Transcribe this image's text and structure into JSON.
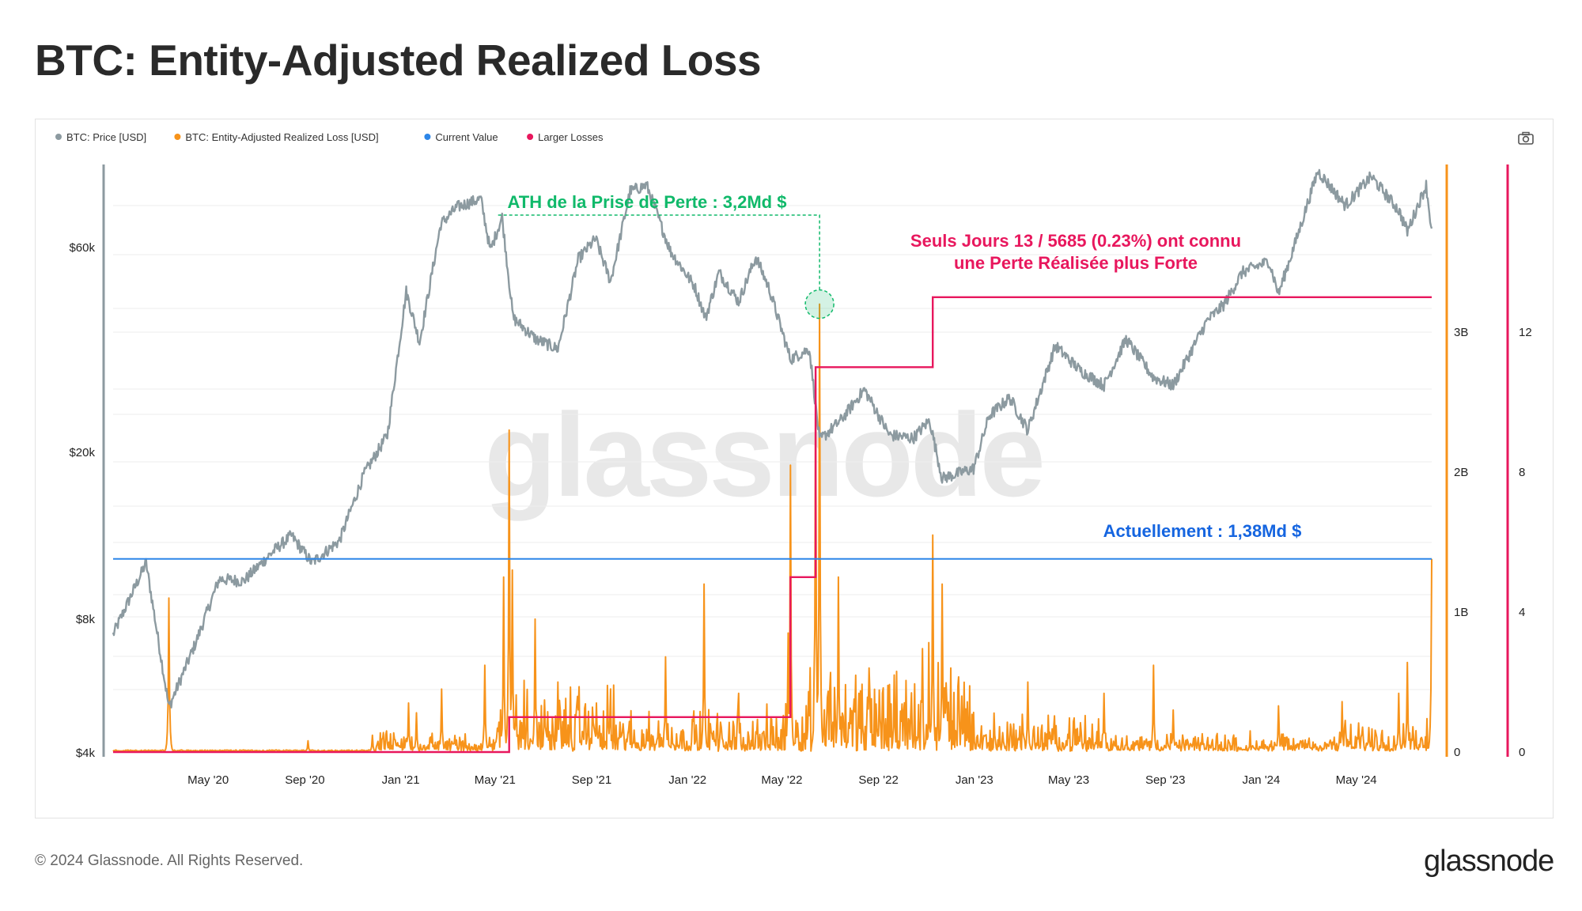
{
  "title": "BTC: Entity-Adjusted Realized Loss",
  "footer": {
    "copyright": "© 2024 Glassnode. All Rights Reserved.",
    "logo": "glassnode"
  },
  "watermark": "glassnode",
  "toolbar": {
    "camera_icon": "camera-icon"
  },
  "colors": {
    "price": "#8c9aa0",
    "loss": "#f7931a",
    "current_value": "#2d86e8",
    "larger_losses": "#e8175d",
    "ath_marker": "#10b96a"
  },
  "legend": [
    {
      "label": "BTC: Price [USD]",
      "color": "#8c9aa0"
    },
    {
      "label": "BTC: Entity-Adjusted Realized Loss [USD]",
      "color": "#f7931a"
    },
    {
      "label": "Current Value",
      "color": "#2d86e8"
    },
    {
      "label": "Larger Losses",
      "color": "#e8175d"
    }
  ],
  "annotations": {
    "ath": "ATH de la Prise de Perte : 3,2Md $",
    "larger_line1": "Seuls Jours 13 / 5685 (0.23%) ont connu",
    "larger_line2": "une Perte Réalisée plus Forte",
    "current": "Actuellement : 1,38Md $"
  },
  "chart_data": {
    "type": "line",
    "x_range": [
      "2020-01-01",
      "2024-08-05"
    ],
    "x_tick_labels": [
      "May '20",
      "Sep '20",
      "Jan '21",
      "May '21",
      "Sep '21",
      "Jan '22",
      "May '22",
      "Sep '22",
      "Jan '23",
      "May '23",
      "Sep '23",
      "Jan '24",
      "May '24"
    ],
    "y_axes": [
      {
        "name": "price",
        "scale": "log",
        "range": [
          4000,
          80000
        ],
        "ticks": [
          4000,
          8000,
          20000,
          60000
        ],
        "tick_labels": [
          "$4k",
          "$8k",
          "$20k",
          "$60k"
        ]
      },
      {
        "name": "loss",
        "scale": "linear",
        "range": [
          0,
          4000000000
        ],
        "ticks": [
          0,
          1000000000,
          2000000000,
          3000000000
        ],
        "tick_labels": [
          "0",
          "1B",
          "2B",
          "3B"
        ]
      },
      {
        "name": "larger_losses_count",
        "scale": "linear",
        "range": [
          0,
          16
        ],
        "ticks": [
          0,
          4,
          8,
          12
        ],
        "tick_labels": [
          "0",
          "4",
          "8",
          "12"
        ]
      }
    ],
    "series": [
      {
        "name": "BTC: Price [USD]",
        "axis": "price",
        "points": [
          [
            "2020-01-01",
            7200
          ],
          [
            "2020-02-12",
            10300
          ],
          [
            "2020-03-12",
            5000
          ],
          [
            "2020-04-15",
            6900
          ],
          [
            "2020-05-15",
            9500
          ],
          [
            "2020-06-15",
            9400
          ],
          [
            "2020-07-25",
            11000
          ],
          [
            "2020-08-15",
            11800
          ],
          [
            "2020-09-10",
            10300
          ],
          [
            "2020-10-15",
            11500
          ],
          [
            "2020-11-15",
            16000
          ],
          [
            "2020-12-15",
            19500
          ],
          [
            "2021-01-08",
            40000
          ],
          [
            "2021-01-25",
            31000
          ],
          [
            "2021-02-21",
            56000
          ],
          [
            "2021-03-14",
            61000
          ],
          [
            "2021-04-13",
            63500
          ],
          [
            "2021-04-25",
            49000
          ],
          [
            "2021-05-10",
            58000
          ],
          [
            "2021-05-24",
            35000
          ],
          [
            "2021-06-22",
            31500
          ],
          [
            "2021-07-20",
            30000
          ],
          [
            "2021-08-15",
            47000
          ],
          [
            "2021-09-06",
            52000
          ],
          [
            "2021-09-25",
            42000
          ],
          [
            "2021-10-20",
            66000
          ],
          [
            "2021-11-10",
            68000
          ],
          [
            "2021-12-10",
            49000
          ],
          [
            "2022-01-10",
            41000
          ],
          [
            "2022-01-24",
            35000
          ],
          [
            "2022-02-10",
            44000
          ],
          [
            "2022-03-07",
            38000
          ],
          [
            "2022-03-29",
            47500
          ],
          [
            "2022-04-15",
            40500
          ],
          [
            "2022-05-12",
            28500
          ],
          [
            "2022-06-05",
            30000
          ],
          [
            "2022-06-18",
            19000
          ],
          [
            "2022-07-15",
            21000
          ],
          [
            "2022-08-14",
            24500
          ],
          [
            "2022-09-15",
            19500
          ],
          [
            "2022-10-15",
            19200
          ],
          [
            "2022-11-05",
            21000
          ],
          [
            "2022-11-21",
            15700
          ],
          [
            "2022-12-31",
            16500
          ],
          [
            "2023-01-20",
            21500
          ],
          [
            "2023-02-15",
            23500
          ],
          [
            "2023-03-10",
            20000
          ],
          [
            "2023-04-14",
            30500
          ],
          [
            "2023-05-15",
            27000
          ],
          [
            "2023-06-15",
            25000
          ],
          [
            "2023-07-13",
            31500
          ],
          [
            "2023-08-17",
            26000
          ],
          [
            "2023-09-11",
            25000
          ],
          [
            "2023-10-24",
            34500
          ],
          [
            "2023-11-15",
            37500
          ],
          [
            "2023-12-08",
            44000
          ],
          [
            "2024-01-11",
            46500
          ],
          [
            "2024-01-23",
            39500
          ],
          [
            "2024-02-15",
            52000
          ],
          [
            "2024-03-13",
            73000
          ],
          [
            "2024-04-17",
            61500
          ],
          [
            "2024-05-20",
            71000
          ],
          [
            "2024-06-24",
            60000
          ],
          [
            "2024-07-05",
            54000
          ],
          [
            "2024-07-29",
            68000
          ],
          [
            "2024-08-05",
            54000
          ]
        ]
      },
      {
        "name": "BTC: Entity-Adjusted Realized Loss [USD]",
        "axis": "loss",
        "baseline": 10000000,
        "spikes": [
          [
            "2020-03-12",
            1100000000
          ],
          [
            "2020-09-05",
            80000000
          ],
          [
            "2020-11-26",
            120000000
          ],
          [
            "2021-01-11",
            350000000
          ],
          [
            "2021-01-21",
            280000000
          ],
          [
            "2021-02-22",
            450000000
          ],
          [
            "2021-04-18",
            620000000
          ],
          [
            "2021-05-12",
            1250000000
          ],
          [
            "2021-05-19",
            2300000000
          ],
          [
            "2021-05-23",
            1300000000
          ],
          [
            "2021-06-21",
            950000000
          ],
          [
            "2021-07-20",
            500000000
          ],
          [
            "2021-09-07",
            350000000
          ],
          [
            "2021-12-04",
            680000000
          ],
          [
            "2022-01-22",
            1200000000
          ],
          [
            "2022-03-07",
            420000000
          ],
          [
            "2022-05-09",
            850000000
          ],
          [
            "2022-05-12",
            2050000000
          ],
          [
            "2022-06-13",
            2700000000
          ],
          [
            "2022-06-18",
            3200000000
          ],
          [
            "2022-07-12",
            1250000000
          ],
          [
            "2022-08-20",
            600000000
          ],
          [
            "2022-09-21",
            550000000
          ],
          [
            "2022-11-09",
            1550000000
          ],
          [
            "2022-11-21",
            1200000000
          ],
          [
            "2022-12-16",
            400000000
          ],
          [
            "2023-03-10",
            500000000
          ],
          [
            "2023-06-15",
            420000000
          ],
          [
            "2023-08-17",
            620000000
          ],
          [
            "2023-09-11",
            300000000
          ],
          [
            "2024-01-23",
            330000000
          ],
          [
            "2024-04-13",
            360000000
          ],
          [
            "2024-06-24",
            420000000
          ],
          [
            "2024-07-05",
            640000000
          ],
          [
            "2024-08-05",
            1380000000
          ]
        ]
      },
      {
        "name": "Current Value",
        "axis": "loss",
        "value": 1380000000
      },
      {
        "name": "Larger Losses",
        "axis": "larger_losses_count",
        "steps": [
          [
            "2020-01-01",
            0
          ],
          [
            "2021-05-19",
            1
          ],
          [
            "2022-05-12",
            5
          ],
          [
            "2022-06-13",
            11
          ],
          [
            "2022-11-09",
            13
          ],
          [
            "2024-08-05",
            13
          ]
        ]
      }
    ],
    "ath_marker": {
      "date": "2022-06-18",
      "value": 3200000000
    }
  }
}
